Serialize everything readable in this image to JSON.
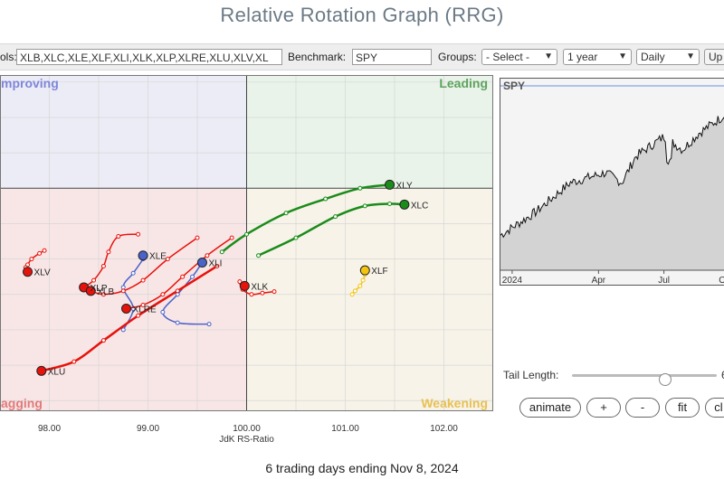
{
  "page": {
    "title": "Relative Rotation Graph (RRG)",
    "footer": "6 trading days ending Nov 8, 2024"
  },
  "toolbar": {
    "symbols_label": "ols:",
    "symbols_value": "XLB,XLC,XLE,XLF,XLI,XLK,XLP,XLRE,XLU,XLV,XL",
    "benchmark_label": "Benchmark:",
    "benchmark_value": "SPY",
    "groups_label": "Groups:",
    "groups_value": "- Select -",
    "period_value": "1 year",
    "frequency_value": "Daily",
    "update_label": "Up"
  },
  "controls": {
    "tail_length_label": "Tail Length:",
    "tail_length_value": "6",
    "animate": "animate",
    "plus": "+",
    "minus": "-",
    "fit": "fit",
    "clear": "cl"
  },
  "spy_panel": {
    "symbol": "SPY",
    "x_ticks": [
      "2024",
      "Apr",
      "Jul",
      "Oc"
    ]
  },
  "colors": {
    "improving_bg": "#ececf6",
    "leading_bg": "#e9f3e9",
    "lagging_bg": "#f8e6e6",
    "weakening_bg": "#f7f3e9",
    "improving_text": "#7f86d8",
    "leading_text": "#5da35d",
    "lagging_text": "#e27b7b",
    "weakening_text": "#e8c153",
    "red": "#e8120c",
    "blue": "#4a63c9",
    "green": "#1a8c1a",
    "yellow": "#f2c30f"
  },
  "chart_data": {
    "type": "scatter",
    "title": "Relative Rotation Graph (RRG)",
    "xlabel": "JdK RS-Ratio",
    "ylabel": "",
    "xlim": [
      97.5,
      102.5
    ],
    "ylim": [
      96.85,
      101.6
    ],
    "x_ticks": [
      "98.00",
      "99.00",
      "100.00",
      "101.00",
      "102.00"
    ],
    "quadrants": [
      "mproving",
      "Leading",
      "agging",
      "Weakening"
    ],
    "series": [
      {
        "name": "XLY",
        "color": "green",
        "points": [
          [
            99.75,
            99.1
          ],
          [
            100.0,
            99.35
          ],
          [
            100.4,
            99.65
          ],
          [
            100.8,
            99.85
          ],
          [
            101.15,
            100.0
          ],
          [
            101.45,
            100.05
          ]
        ]
      },
      {
        "name": "XLC",
        "color": "green",
        "points": [
          [
            100.12,
            99.05
          ],
          [
            100.5,
            99.3
          ],
          [
            100.9,
            99.6
          ],
          [
            101.2,
            99.75
          ],
          [
            101.45,
            99.78
          ],
          [
            101.6,
            99.77
          ]
        ]
      },
      {
        "name": "XLF",
        "color": "yellow",
        "points": [
          [
            101.07,
            98.5
          ],
          [
            101.1,
            98.55
          ],
          [
            101.15,
            98.62
          ],
          [
            101.18,
            98.7
          ],
          [
            101.2,
            98.78
          ],
          [
            101.2,
            98.84
          ]
        ]
      },
      {
        "name": "XLK",
        "color": "red",
        "points": [
          [
            100.28,
            98.54
          ],
          [
            100.16,
            98.52
          ],
          [
            100.05,
            98.5
          ],
          [
            99.96,
            98.57
          ],
          [
            99.93,
            98.68
          ],
          [
            99.98,
            98.62
          ]
        ]
      },
      {
        "name": "XLI",
        "color": "blue",
        "points": [
          [
            99.62,
            98.08
          ],
          [
            99.3,
            98.1
          ],
          [
            99.15,
            98.25
          ],
          [
            99.3,
            98.5
          ],
          [
            99.45,
            98.75
          ],
          [
            99.55,
            98.95
          ]
        ]
      },
      {
        "name": "XLE",
        "color": "blue",
        "points": [
          [
            98.75,
            98.0
          ],
          [
            98.85,
            98.3
          ],
          [
            98.75,
            98.6
          ],
          [
            98.85,
            98.8
          ],
          [
            98.95,
            99.0
          ],
          [
            98.95,
            99.05
          ]
        ]
      },
      {
        "name": "XLV",
        "color": "red",
        "points": [
          [
            97.95,
            99.12
          ],
          [
            97.9,
            99.08
          ],
          [
            97.82,
            99.0
          ],
          [
            97.78,
            98.92
          ],
          [
            97.76,
            98.88
          ],
          [
            97.78,
            98.82
          ]
        ]
      },
      {
        "name": "XLP",
        "color": "red",
        "points": [
          [
            98.9,
            99.35
          ],
          [
            98.7,
            99.32
          ],
          [
            98.6,
            99.1
          ],
          [
            98.55,
            98.9
          ],
          [
            98.45,
            98.7
          ],
          [
            98.35,
            98.6
          ]
        ]
      },
      {
        "name": "XLB",
        "color": "red",
        "points": [
          [
            99.5,
            99.3
          ],
          [
            99.2,
            99.0
          ],
          [
            98.95,
            98.7
          ],
          [
            98.75,
            98.55
          ],
          [
            98.55,
            98.5
          ],
          [
            98.42,
            98.55
          ]
        ]
      },
      {
        "name": "XLRE",
        "color": "red",
        "points": [
          [
            99.85,
            99.3
          ],
          [
            99.6,
            99.05
          ],
          [
            99.35,
            98.75
          ],
          [
            99.15,
            98.5
          ],
          [
            98.95,
            98.35
          ],
          [
            98.78,
            98.3
          ]
        ]
      },
      {
        "name": "XLU",
        "color": "red",
        "points": [
          [
            99.7,
            98.9
          ],
          [
            99.3,
            98.55
          ],
          [
            98.9,
            98.2
          ],
          [
            98.55,
            97.85
          ],
          [
            98.25,
            97.55
          ],
          [
            97.92,
            97.42
          ]
        ]
      }
    ]
  }
}
